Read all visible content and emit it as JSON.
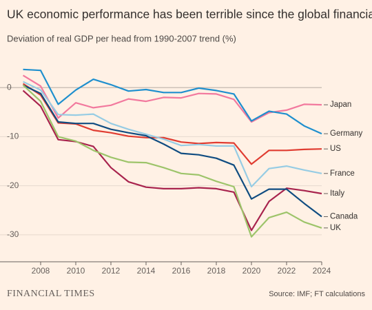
{
  "chart_data": {
    "type": "line",
    "title": "UK economic performance has been terrible since the global financial crisis",
    "subtitle": "Deviation of real GDP per head from 1990-2007 trend (%)",
    "source": "Source: IMF; FT calculations",
    "brand": "FINANCIAL TIMES",
    "x": [
      2007,
      2008,
      2009,
      2010,
      2011,
      2012,
      2013,
      2014,
      2015,
      2016,
      2017,
      2018,
      2019,
      2020,
      2021,
      2022,
      2023,
      2024
    ],
    "xlim": [
      2007,
      2024
    ],
    "xticks": [
      2008,
      2010,
      2012,
      2014,
      2016,
      2018,
      2020,
      2022,
      2024
    ],
    "ylim": [
      -35.5,
      5.5
    ],
    "yticks": [
      0,
      -10,
      -20,
      -30
    ],
    "grid": true,
    "series": [
      {
        "name": "Japan",
        "color": "#f2799e",
        "values": [
          2.5,
          0.3,
          -6.2,
          -3.1,
          -4.1,
          -3.6,
          -2.3,
          -2.8,
          -2.0,
          -2.1,
          -1.2,
          -1.3,
          -2.4,
          -7.0,
          -5.1,
          -4.6,
          -3.4,
          -3.5
        ]
      },
      {
        "name": "Germany",
        "color": "#1e8fce",
        "values": [
          3.7,
          3.5,
          -3.4,
          -0.5,
          1.7,
          0.6,
          -0.7,
          -0.4,
          -1.0,
          -1.0,
          -0.1,
          -0.6,
          -1.3,
          -6.8,
          -4.8,
          -5.4,
          -7.8,
          -9.4
        ]
      },
      {
        "name": "US",
        "color": "#e03c31",
        "values": [
          0.8,
          -1.5,
          -7.2,
          -7.4,
          -8.7,
          -9.2,
          -9.9,
          -10.2,
          -10.2,
          -11.1,
          -11.4,
          -11.2,
          -11.3,
          -15.6,
          -12.8,
          -12.8,
          -12.6,
          -12.5
        ]
      },
      {
        "name": "France",
        "color": "#96cce4",
        "values": [
          1.2,
          -0.5,
          -5.5,
          -5.6,
          -5.4,
          -7.3,
          -8.5,
          -9.5,
          -10.5,
          -11.8,
          -11.6,
          -11.9,
          -11.9,
          -20.2,
          -16.5,
          -16.0,
          -16.8,
          -17.5
        ]
      },
      {
        "name": "Italy",
        "color": "#a8234d",
        "values": [
          -0.6,
          -3.8,
          -10.6,
          -11.0,
          -12.0,
          -16.3,
          -19.2,
          -20.3,
          -20.6,
          -20.6,
          -20.4,
          -20.6,
          -21.3,
          -29.1,
          -23.2,
          -20.5,
          -21.0,
          -21.6
        ]
      },
      {
        "name": "Canada",
        "color": "#0f4c81",
        "values": [
          0.5,
          -1.2,
          -7.0,
          -7.3,
          -7.3,
          -8.5,
          -9.2,
          -9.8,
          -11.5,
          -13.4,
          -13.7,
          -14.4,
          -15.8,
          -22.7,
          -20.7,
          -20.7,
          -23.6,
          -26.3
        ]
      },
      {
        "name": "UK",
        "color": "#9dc46a",
        "values": [
          0.5,
          -2.8,
          -10.0,
          -10.9,
          -12.8,
          -14.2,
          -15.2,
          -15.3,
          -16.3,
          -17.5,
          -17.8,
          -19.1,
          -20.2,
          -30.4,
          -26.5,
          -25.4,
          -27.4,
          -28.6
        ]
      }
    ]
  }
}
